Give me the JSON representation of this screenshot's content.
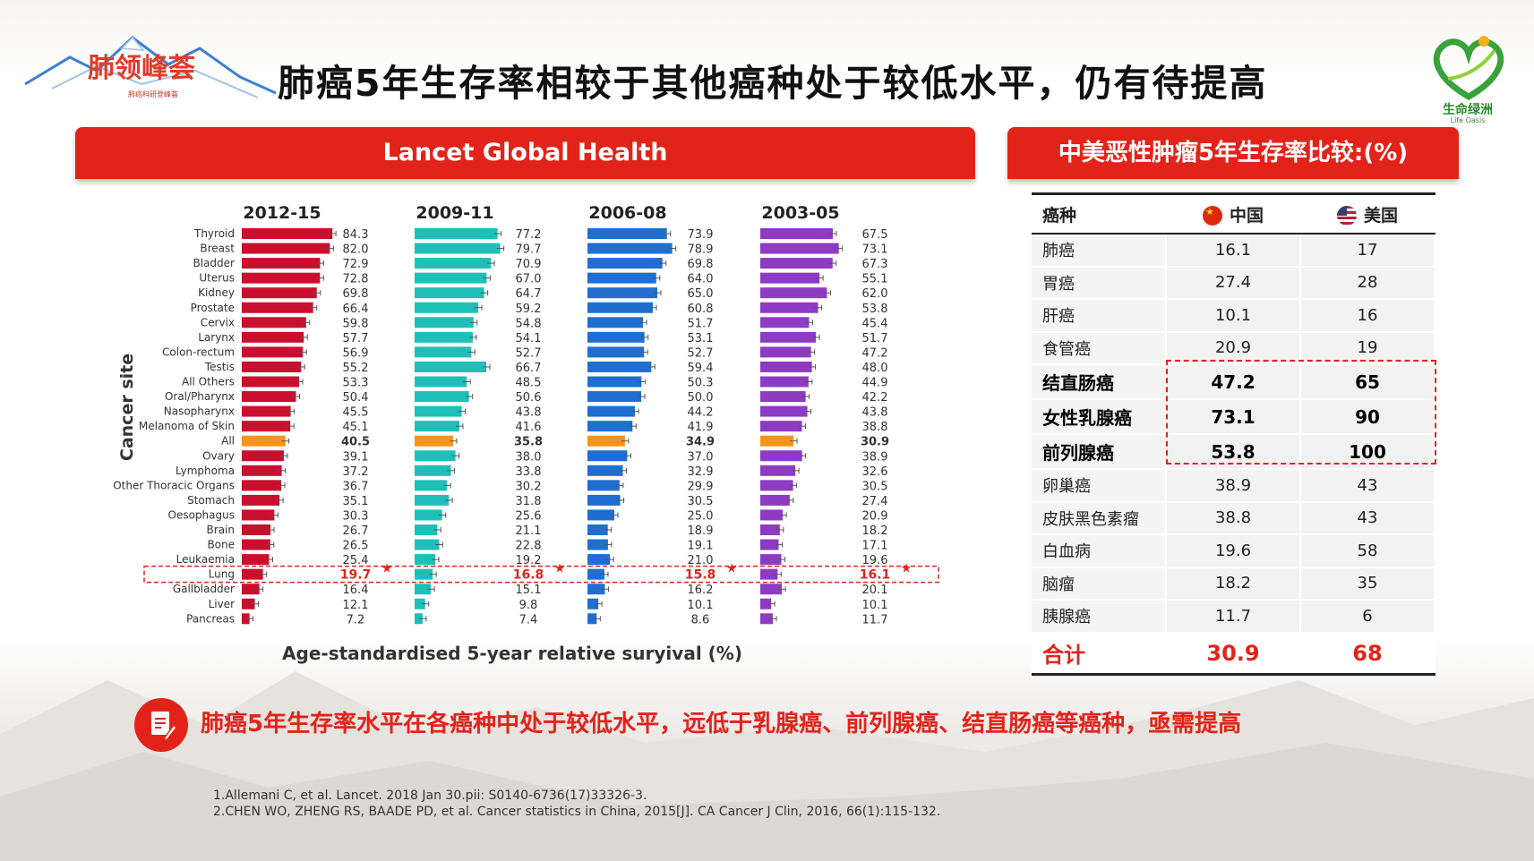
{
  "page": {
    "title": "肺癌5年生存率相较于其他癌种处于较低水平，仍有待提高",
    "logo_left_text": "肺领峰荟",
    "logo_left_sub": "肺癌科研登峰荟",
    "logo_right_text": "生命绿洲",
    "logo_right_sub": "Life Oasis",
    "accent_color": "#e2231a"
  },
  "lancet_panel": {
    "header": "Lancet Global Health"
  },
  "chart_data": {
    "type": "bar",
    "orientation": "horizontal",
    "ylabel": "Cancer site",
    "xlabel": "Age-standardised 5-year relative suryival (%)",
    "categories": [
      "Thyroid",
      "Breast",
      "Bladder",
      "Uterus",
      "Kidney",
      "Prostate",
      "Cervix",
      "Larynx",
      "Colon-rectum",
      "Testis",
      "All Others",
      "Oral/Pharynx",
      "Nasopharynx",
      "Melanoma of Skin",
      "All",
      "Ovary",
      "Lymphoma",
      "Other Thoracic Organs",
      "Stomach",
      "Oesophagus",
      "Brain",
      "Bone",
      "Leukaemia",
      "Lung",
      "Gallbladder",
      "Liver",
      "Pancreas"
    ],
    "highlight_category": "All",
    "marked_category": "Lung",
    "highlight_color": "#f7941d",
    "series": [
      {
        "name": "2012-15",
        "color": "#c8102e",
        "values": [
          "84.3",
          "82.0",
          "72.9",
          "72.8",
          "69.8",
          "66.4",
          "59.8",
          "57.7",
          "56.9",
          "55.2",
          "53.3",
          "50.4",
          "45.5",
          "45.1",
          "40.5",
          "39.1",
          "37.2",
          "36.7",
          "35.1",
          "30.3",
          "26.7",
          "26.5",
          "25.4",
          "19.7",
          "16.4",
          "12.1",
          "7.2"
        ]
      },
      {
        "name": "2009-11",
        "color": "#1fbfb8",
        "values": [
          "77.2",
          "79.7",
          "70.9",
          "67.0",
          "64.7",
          "59.2",
          "54.8",
          "54.1",
          "52.7",
          "66.7",
          "48.5",
          "50.6",
          "43.8",
          "41.6",
          "35.8",
          "38.0",
          "33.8",
          "30.2",
          "31.8",
          "25.6",
          "21.1",
          "22.8",
          "19.2",
          "16.8",
          "15.1",
          "9.8",
          "7.4"
        ]
      },
      {
        "name": "2006-08",
        "color": "#1f6fd1",
        "values": [
          "73.9",
          "78.9",
          "69.8",
          "64.0",
          "65.0",
          "60.8",
          "51.7",
          "53.1",
          "52.7",
          "59.4",
          "50.3",
          "50.0",
          "44.2",
          "41.9",
          "34.9",
          "37.0",
          "32.9",
          "29.9",
          "30.5",
          "25.0",
          "18.9",
          "19.1",
          "21.0",
          "15.8",
          "16.2",
          "10.1",
          "8.6"
        ]
      },
      {
        "name": "2003-05",
        "color": "#8e3bc4",
        "values": [
          "67.5",
          "73.1",
          "67.3",
          "55.1",
          "62.0",
          "53.8",
          "45.4",
          "51.7",
          "47.2",
          "48.0",
          "44.9",
          "42.2",
          "43.8",
          "38.8",
          "30.9",
          "38.9",
          "32.6",
          "30.5",
          "27.4",
          "20.9",
          "18.2",
          "17.1",
          "19.6",
          "16.1",
          "20.1",
          "10.1",
          "11.7"
        ]
      }
    ]
  },
  "cn_panel": {
    "header": "中美恶性肿瘤5年生存率比较:(%)",
    "col_type": "癌种",
    "col_cn": "中国",
    "col_us": "美国",
    "rows": [
      {
        "cancer": "肺癌",
        "cn": "16.1",
        "us": "17"
      },
      {
        "cancer": "胃癌",
        "cn": "27.4",
        "us": "28"
      },
      {
        "cancer": "肝癌",
        "cn": "10.1",
        "us": "16"
      },
      {
        "cancer": "食管癌",
        "cn": "20.9",
        "us": "19"
      },
      {
        "cancer": "结直肠癌",
        "cn": "47.2",
        "us": "65"
      },
      {
        "cancer": "女性乳腺癌",
        "cn": "73.1",
        "us": "90"
      },
      {
        "cancer": "前列腺癌",
        "cn": "53.8",
        "us": "100"
      },
      {
        "cancer": "卵巢癌",
        "cn": "38.9",
        "us": "43"
      },
      {
        "cancer": "皮肤黑色素瘤",
        "cn": "38.8",
        "us": "43"
      },
      {
        "cancer": "白血病",
        "cn": "19.6",
        "us": "58"
      },
      {
        "cancer": "脑瘤",
        "cn": "18.2",
        "us": "35"
      },
      {
        "cancer": "胰腺癌",
        "cn": "11.7",
        "us": "6"
      }
    ],
    "total": {
      "label": "合计",
      "cn": "30.9",
      "us": "68"
    }
  },
  "callout": {
    "text": "肺癌5年生存率水平在各癌种中处于较低水平，远低于乳腺癌、前列腺癌、结直肠癌等癌种，亟需提高"
  },
  "references": [
    "1.Allemani C, et al. Lancet. 2018 Jan 30.pii: S0140-6736(17)33326-3.",
    "2.CHEN WO, ZHENG RS, BAADE PD, et al. Cancer statistics in China, 2015[J]. CA Cancer J Clin, 2016, 66(1):115-132."
  ]
}
